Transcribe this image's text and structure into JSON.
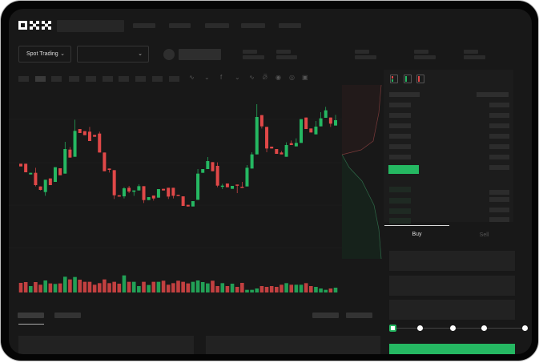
{
  "brand": {
    "logo": "OKX"
  },
  "header": {
    "spot_dropdown_label": "Spot Trading",
    "chevron": "chevron-down-icon"
  },
  "trade": {
    "buy_tab": "Buy",
    "sell_tab": "Sell",
    "active_tab": "Buy",
    "slider_position_percent": 0,
    "accent": "#25b862"
  },
  "colors": {
    "up": "#25b862",
    "down": "#e04848",
    "background": "#181818"
  },
  "toolbar_icons": [
    "line-icon",
    "line-icon",
    "fx-icon",
    "wave-icon",
    "ruler-icon",
    "lock-icon",
    "eye-icon",
    "fullscreen-icon"
  ],
  "orderbook_icons": [
    "orderbook-both-icon",
    "orderbook-buy-icon",
    "orderbook-sell-icon"
  ],
  "chart_data": {
    "type": "candlestick",
    "title": "",
    "xlabel": "",
    "ylabel": "",
    "grid": true,
    "ohlc": [
      [
        150,
        150,
        140,
        140
      ],
      [
        150,
        150,
        118,
        118
      ],
      [
        110,
        116,
        110,
        116
      ],
      [
        116,
        135,
        65,
        70
      ],
      [
        65,
        65,
        50,
        52
      ],
      [
        44,
        90,
        30,
        90
      ],
      [
        95,
        95,
        70,
        70
      ],
      [
        82,
        137,
        82,
        137
      ],
      [
        133,
        133,
        107,
        107
      ],
      [
        113,
        232,
        113,
        205
      ],
      [
        203,
        212,
        173,
        173
      ],
      [
        176,
        315,
        176,
        273
      ],
      [
        280,
        280,
        265,
        265
      ],
      [
        272,
        272,
        257,
        257
      ],
      [
        270,
        288,
        235,
        235
      ],
      [
        258,
        258,
        251,
        251
      ],
      [
        263,
        270,
        192,
        192
      ],
      [
        192,
        192,
        122,
        122
      ],
      [
        132,
        132,
        117,
        127
      ],
      [
        126,
        126,
        18,
        32
      ],
      [
        32,
        32,
        27,
        27
      ],
      [
        28,
        63,
        20,
        58
      ],
      [
        60,
        67,
        40,
        46
      ],
      [
        45,
        50,
        30,
        50
      ],
      [
        50,
        73,
        50,
        66
      ],
      [
        66,
        66,
        3,
        14
      ],
      [
        14,
        25,
        14,
        25
      ],
      [
        31,
        31,
        12,
        20
      ],
      [
        23,
        55,
        23,
        55
      ],
      [
        56,
        56,
        50,
        50
      ],
      [
        60,
        60,
        18,
        27
      ],
      [
        60,
        60,
        20,
        30
      ],
      [
        34,
        34,
        30,
        30
      ],
      [
        28,
        28,
        -8,
        -8
      ],
      [
        -4,
        -4,
        -10,
        -10
      ],
      [
        -10,
        10,
        -10,
        10
      ],
      [
        15,
        130,
        15,
        113
      ],
      [
        116,
        130,
        116,
        130
      ],
      [
        130,
        175,
        130,
        160
      ],
      [
        156,
        156,
        122,
        122
      ],
      [
        142,
        155,
        62,
        68
      ],
      [
        65,
        75,
        55,
        68
      ],
      [
        76,
        76,
        62,
        62
      ],
      [
        56,
        67,
        56,
        67
      ],
      [
        72,
        72,
        40,
        68
      ],
      [
        64,
        82,
        60,
        60
      ],
      [
        65,
        145,
        65,
        135
      ],
      [
        132,
        193,
        132,
        185
      ],
      [
        185,
        373,
        185,
        325
      ],
      [
        332,
        332,
        282,
        290
      ],
      [
        288,
        288,
        193,
        207
      ],
      [
        214,
        214,
        207,
        207
      ],
      [
        205,
        205,
        187,
        187
      ],
      [
        192,
        198,
        185,
        185
      ],
      [
        176,
        230,
        176,
        220
      ],
      [
        227,
        237,
        220,
        220
      ],
      [
        215,
        245,
        215,
        228
      ],
      [
        228,
        317,
        228,
        317
      ],
      [
        323,
        323,
        280,
        280
      ],
      [
        282,
        282,
        267,
        267
      ],
      [
        260,
        310,
        260,
        289
      ],
      [
        290,
        343,
        290,
        320
      ],
      [
        322,
        363,
        322,
        350
      ],
      [
        323,
        323,
        288,
        300
      ],
      [
        293,
        333,
        293,
        313
      ]
    ],
    "volume": [
      36,
      39,
      24,
      39,
      29,
      45,
      34,
      32,
      34,
      59,
      49,
      58,
      48,
      40,
      40,
      29,
      35,
      49,
      35,
      40,
      33,
      64,
      40,
      40,
      24,
      40,
      28,
      40,
      40,
      44,
      29,
      35,
      44,
      40,
      34,
      40,
      45,
      39,
      34,
      44,
      24,
      35,
      24,
      33,
      21,
      36,
      10,
      10,
      15,
      24,
      21,
      24,
      21,
      29,
      35,
      29,
      29,
      29,
      35,
      24,
      21,
      15,
      10,
      15,
      18
    ]
  }
}
